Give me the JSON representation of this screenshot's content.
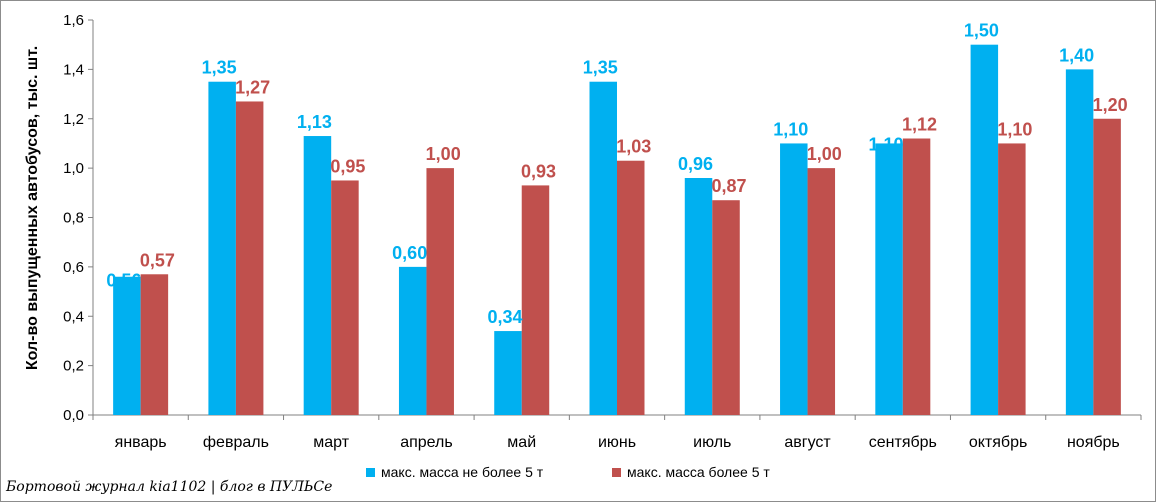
{
  "chart_data": {
    "type": "bar",
    "ylabel": "Кол-во выпущенных автобусов, тыс. шт.",
    "xlabel": "",
    "ylim": [
      0,
      1.6
    ],
    "ytick_step": 0.2,
    "grid": false,
    "legend_position": "bottom",
    "categories": [
      "январь",
      "февраль",
      "март",
      "апрель",
      "май",
      "июнь",
      "июль",
      "август",
      "сентябрь",
      "октябрь",
      "ноябрь"
    ],
    "series": [
      {
        "name": "макс. масса не более 5 т",
        "color": "#00B0F0",
        "values": [
          0.56,
          1.35,
          1.13,
          0.6,
          0.34,
          1.35,
          0.96,
          1.1,
          1.1,
          1.5,
          1.4
        ]
      },
      {
        "name": "макс. масса более 5 т",
        "color": "#C0504D",
        "values": [
          0.57,
          1.27,
          0.95,
          1.0,
          0.93,
          1.03,
          0.87,
          1.0,
          1.12,
          1.1,
          1.2
        ]
      }
    ]
  },
  "footer": "Бортовой журнал kia1102 | блог в ПУЛЬСе"
}
